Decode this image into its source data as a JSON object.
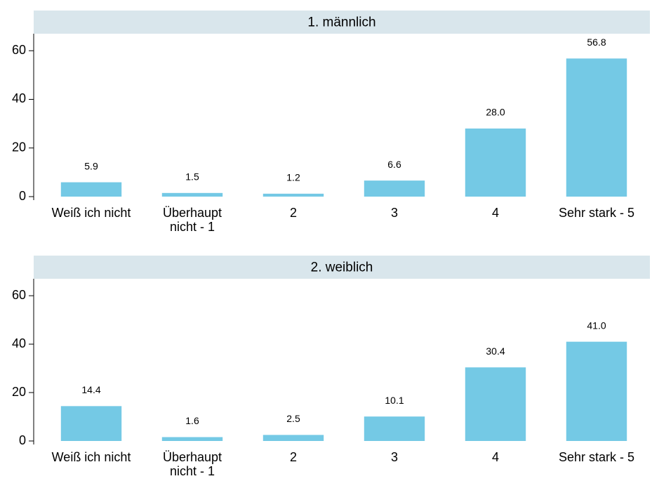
{
  "chart_data": [
    {
      "type": "bar",
      "title": "1. männlich",
      "categories": [
        "Weiß ich nicht",
        "Überhaupt nicht - 1",
        "2",
        "3",
        "4",
        "Sehr stark - 5"
      ],
      "values": [
        5.9,
        1.5,
        1.2,
        6.6,
        28.0,
        56.8
      ],
      "value_labels": [
        "5.9",
        "1.5",
        "1.2",
        "6.6",
        "28.0",
        "56.8"
      ],
      "color": "#74c9e5",
      "ylim": [
        0,
        67
      ],
      "yticks": [
        0,
        20,
        40,
        60
      ]
    },
    {
      "type": "bar",
      "title": "2. weiblich",
      "categories": [
        "Weiß ich nicht",
        "Überhaupt nicht - 1",
        "2",
        "3",
        "4",
        "Sehr stark - 5"
      ],
      "values": [
        14.4,
        1.6,
        2.5,
        10.1,
        30.4,
        41.0
      ],
      "value_labels": [
        "14.4",
        "1.6",
        "2.5",
        "10.1",
        "30.4",
        "41.0"
      ],
      "color": "#74c9e5",
      "ylim": [
        0,
        67
      ],
      "yticks": [
        0,
        20,
        40,
        60
      ]
    }
  ]
}
